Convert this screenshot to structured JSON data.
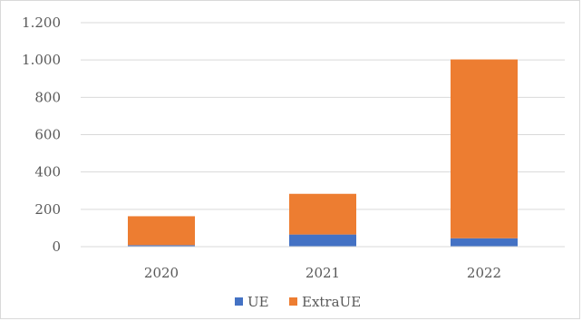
{
  "chart_data": {
    "type": "bar",
    "stacked": true,
    "title": "",
    "xlabel": "",
    "ylabel": "",
    "categories": [
      "2020",
      "2021",
      "2022"
    ],
    "series": [
      {
        "name": "UE",
        "values": [
          8,
          65,
          45
        ],
        "color": "#4472c4"
      },
      {
        "name": "ExtraUE",
        "values": [
          155,
          218,
          958
        ],
        "color": "#ed7d31"
      }
    ],
    "ylim": [
      0,
      1200
    ],
    "yticks": [
      0,
      200,
      400,
      600,
      800,
      1000,
      1200
    ],
    "ytick_labels": [
      "0",
      "200",
      "400",
      "600",
      "800",
      "1.000",
      "1.200"
    ],
    "grid": true,
    "legend_position": "bottom"
  }
}
